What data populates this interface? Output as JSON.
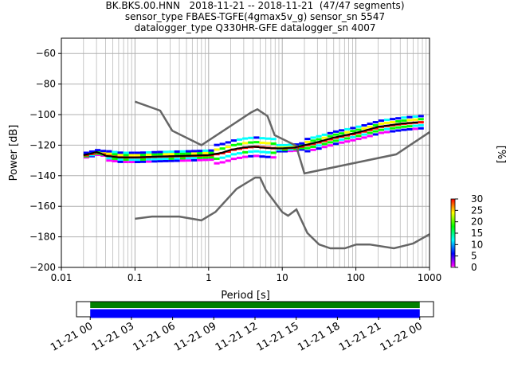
{
  "header": {
    "line1": "BK.BKS.00.HNN   2018-11-21 -- 2018-11-21  (47/47 segments)",
    "line2": "sensor_type FBAES-TGFE(4gmax5v_g) sensor_sn 5547",
    "line3": "datalogger_type Q330HR-GFE datalogger_sn 4007"
  },
  "chart_data": [
    {
      "type": "heatmap",
      "xlabel": "Period [s]",
      "ylabel": "Power [dB]",
      "xscale": "log",
      "xlim": [
        0.01,
        1000
      ],
      "ylim": [
        -200,
        -50
      ],
      "grid": true,
      "x_ticks": [
        "0.01",
        "0.1",
        "1",
        "10",
        "100",
        "1000"
      ],
      "y_ticks": [
        "−200",
        "−180",
        "−160",
        "−140",
        "−120",
        "−100",
        "−80",
        "−60"
      ],
      "colorbar": {
        "label": "[%]",
        "ticks": [
          "0",
          "5",
          "10",
          "15",
          "20",
          "25",
          "30"
        ],
        "range": [
          0,
          30
        ],
        "colors": [
          "#ffffff",
          "#ff00ff",
          "#0000ff",
          "#00ffff",
          "#00ff00",
          "#ffff00",
          "#ff8000",
          "#ff0000"
        ]
      },
      "series": [
        {
          "name": "",
          "role": "noise-model-high",
          "color": "#666666",
          "points": [
            [
              0.1,
              -91.5
            ],
            [
              0.22,
              -97.4
            ],
            [
              0.32,
              -110.5
            ],
            [
              0.8,
              -120
            ],
            [
              3.8,
              -98.5
            ],
            [
              4.6,
              -96.5
            ],
            [
              6.3,
              -101
            ],
            [
              7.9,
              -113.5
            ],
            [
              15.4,
              -120.3
            ],
            [
              20,
              -138.5
            ],
            [
              354,
              -126
            ],
            [
              1000,
              -111.5
            ]
          ]
        },
        {
          "name": "",
          "role": "noise-model-low",
          "color": "#666666",
          "points": [
            [
              0.1,
              -168.2
            ],
            [
              0.17,
              -166.7
            ],
            [
              0.4,
              -166.7
            ],
            [
              0.8,
              -169.2
            ],
            [
              1.24,
              -163.7
            ],
            [
              2.4,
              -148.6
            ],
            [
              4.3,
              -141.2
            ],
            [
              5,
              -141.2
            ],
            [
              6,
              -149.5
            ],
            [
              10,
              -163.8
            ],
            [
              12,
              -166.2
            ],
            [
              15.6,
              -162.1
            ],
            [
              21.9,
              -177.5
            ],
            [
              31.6,
              -185
            ],
            [
              45,
              -187.5
            ],
            [
              70.8,
              -187.5
            ],
            [
              101,
              -185
            ],
            [
              154,
              -185
            ],
            [
              328,
              -187.5
            ],
            [
              600,
              -184.4
            ],
            [
              1000,
              -178.3
            ]
          ]
        },
        {
          "name": "",
          "role": "mode",
          "color": "#000000",
          "points": [
            [
              0.02,
              -126.5
            ],
            [
              0.025,
              -125.5
            ],
            [
              0.03,
              -124.5
            ],
            [
              0.035,
              -125.5
            ],
            [
              0.04,
              -127
            ],
            [
              0.06,
              -128
            ],
            [
              0.1,
              -128
            ],
            [
              0.2,
              -127.5
            ],
            [
              0.5,
              -127
            ],
            [
              1,
              -126.5
            ],
            [
              1.5,
              -125
            ],
            [
              2,
              -123
            ],
            [
              3,
              -121.5
            ],
            [
              4,
              -121
            ],
            [
              5,
              -121.5
            ],
            [
              7,
              -122
            ],
            [
              10,
              -122
            ],
            [
              15,
              -121.5
            ],
            [
              20,
              -120
            ],
            [
              30,
              -118
            ],
            [
              50,
              -115
            ],
            [
              80,
              -113
            ],
            [
              120,
              -111
            ],
            [
              200,
              -108
            ],
            [
              400,
              -106
            ],
            [
              700,
              -105
            ]
          ]
        }
      ]
    },
    {
      "type": "timeline",
      "x_ticks": [
        "11-21 00",
        "11-21 03",
        "11-21 06",
        "11-21 09",
        "11-21 12",
        "11-21 15",
        "11-21 18",
        "11-21 21",
        "11-22 00"
      ],
      "coverage_hours": [
        0,
        24
      ],
      "xlim_hours": [
        -1,
        25
      ],
      "bands": [
        {
          "name": "",
          "color": "#008000"
        },
        {
          "name": "",
          "color": "#0000ff"
        }
      ]
    }
  ]
}
